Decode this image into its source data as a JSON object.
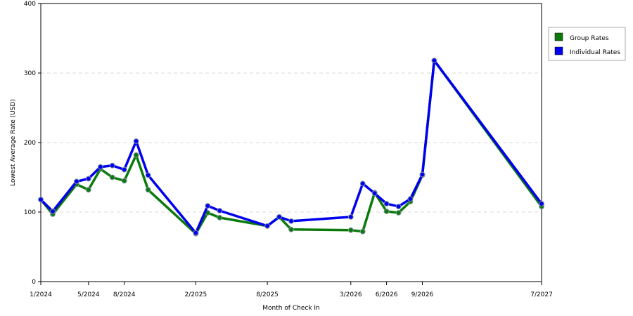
{
  "chart_data": {
    "type": "line",
    "xlabel": "Month of Check In",
    "ylabel": "Lowest Average Rate (USD)",
    "ylim": [
      0,
      400
    ],
    "yticks": [
      0,
      100,
      200,
      300,
      400
    ],
    "xtick_labels": [
      "1/2024",
      "5/2024",
      "8/2024",
      "2/2025",
      "8/2025",
      "3/2026",
      "6/2026",
      "9/2026",
      "7/2027"
    ],
    "x": [
      "1/2024",
      "2/2024",
      "4/2024",
      "5/2024",
      "6/2024",
      "7/2024",
      "8/2024",
      "9/2024",
      "10/2024",
      "2/2025",
      "3/2025",
      "4/2025",
      "8/2025",
      "9/2025",
      "10/2025",
      "3/2026",
      "4/2026",
      "5/2026",
      "6/2026",
      "7/2026",
      "8/2026",
      "9/2026",
      "10/2026",
      "7/2027"
    ],
    "grid": true,
    "legend_position": "right",
    "series": [
      {
        "name": "Group Rates",
        "color": "#0b7a0b",
        "values": [
          118,
          97,
          140,
          132,
          162,
          150,
          145,
          182,
          132,
          69,
          99,
          92,
          80,
          93,
          75,
          74,
          72,
          128,
          101,
          99,
          115,
          153,
          318,
          108
        ]
      },
      {
        "name": "Individual Rates",
        "color": "#0000ee",
        "values": [
          118,
          101,
          144,
          148,
          165,
          167,
          161,
          202,
          153,
          70,
          109,
          102,
          80,
          93,
          87,
          93,
          141,
          127,
          112,
          108,
          119,
          154,
          318,
          112
        ]
      }
    ]
  }
}
